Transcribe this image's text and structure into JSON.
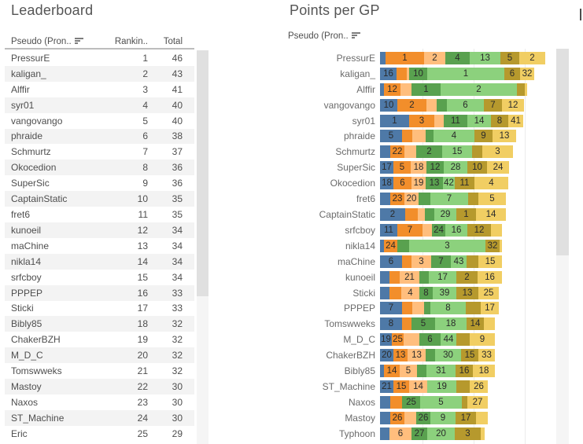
{
  "chart_data": [
    {
      "type": "table",
      "title": "Leaderboard",
      "columns": [
        "Pseudo (Pron..",
        "Rankin..",
        "Total"
      ],
      "sort_icon": "sort-descending",
      "rows": [
        [
          "PressurE",
          1,
          46
        ],
        [
          "kaligan_",
          2,
          43
        ],
        [
          "Alffir",
          3,
          41
        ],
        [
          "syr01",
          4,
          40
        ],
        [
          "vangovango",
          5,
          40
        ],
        [
          "phraide",
          6,
          38
        ],
        [
          "Schmurtz",
          7,
          37
        ],
        [
          "Okocedion",
          8,
          36
        ],
        [
          "SuperSic",
          9,
          36
        ],
        [
          "CaptainStatic",
          10,
          35
        ],
        [
          "fret6",
          11,
          35
        ],
        [
          "kunoeil",
          12,
          34
        ],
        [
          "maChine",
          13,
          34
        ],
        [
          "nikla14",
          14,
          34
        ],
        [
          "srfcboy",
          15,
          34
        ],
        [
          "PPPEP",
          16,
          33
        ],
        [
          "Sticki",
          17,
          33
        ],
        [
          "Bibly85",
          18,
          32
        ],
        [
          "ChakerBZH",
          19,
          32
        ],
        [
          "M_D_C",
          20,
          32
        ],
        [
          "Tomswweks",
          21,
          32
        ],
        [
          "Mastoy",
          22,
          30
        ],
        [
          "Naxos",
          23,
          30
        ],
        [
          "ST_Machine",
          24,
          30
        ],
        [
          "Eric",
          25,
          29
        ]
      ]
    },
    {
      "type": "bar",
      "subtype": "stacked-horizontal",
      "title": "Points per GP",
      "row_label_field": "Pseudo (Pron..",
      "sort_icon": "sort-descending",
      "axis": "hidden",
      "grid": "vertical-light",
      "palette": [
        "#4E79A7",
        "#F28E2B",
        "#FFBE7D",
        "#59A14F",
        "#8CD17D",
        "#B6992D",
        "#F1CE63"
      ],
      "segment_format": [
        "color_index",
        "width_px",
        "label"
      ],
      "rows": [
        {
          "name": "PressurE",
          "segments": [
            [
              0,
              7,
              ""
            ],
            [
              1,
              49,
              "1"
            ],
            [
              2,
              27,
              "2"
            ],
            [
              3,
              31,
              "4"
            ],
            [
              4,
              39,
              "13"
            ],
            [
              5,
              24,
              "5"
            ],
            [
              6,
              33,
              "2"
            ]
          ]
        },
        {
          "name": "kaligan_",
          "segments": [
            [
              0,
              21,
              "16"
            ],
            [
              1,
              13,
              ""
            ],
            [
              2,
              3,
              ""
            ],
            [
              3,
              23,
              "10"
            ],
            [
              4,
              98,
              "1"
            ],
            [
              5,
              20,
              "6"
            ],
            [
              6,
              18,
              "32"
            ]
          ]
        },
        {
          "name": "Alffir",
          "segments": [
            [
              0,
              5,
              ""
            ],
            [
              1,
              21,
              "12"
            ],
            [
              2,
              14,
              ""
            ],
            [
              3,
              37,
              "1"
            ],
            [
              4,
              97,
              "2"
            ],
            [
              5,
              10,
              ""
            ],
            [
              6,
              3,
              ""
            ]
          ]
        },
        {
          "name": "vangovango",
          "segments": [
            [
              0,
              22,
              "10"
            ],
            [
              1,
              37,
              "2"
            ],
            [
              2,
              13,
              ""
            ],
            [
              3,
              13,
              ""
            ],
            [
              4,
              47,
              "6"
            ],
            [
              5,
              23,
              "7"
            ],
            [
              6,
              28,
              "12"
            ]
          ]
        },
        {
          "name": "syr01",
          "segments": [
            [
              0,
              37,
              "1"
            ],
            [
              1,
              32,
              "3"
            ],
            [
              2,
              12,
              ""
            ],
            [
              3,
              30,
              "11"
            ],
            [
              4,
              30,
              "14"
            ],
            [
              5,
              22,
              "8"
            ],
            [
              6,
              19,
              "41"
            ]
          ]
        },
        {
          "name": "phraide",
          "segments": [
            [
              0,
              28,
              "5"
            ],
            [
              1,
              13,
              ""
            ],
            [
              2,
              17,
              ""
            ],
            [
              3,
              10,
              ""
            ],
            [
              4,
              52,
              "4"
            ],
            [
              5,
              23,
              "9"
            ],
            [
              6,
              30,
              "13"
            ]
          ]
        },
        {
          "name": "Schmurtz",
          "segments": [
            [
              0,
              13,
              ""
            ],
            [
              1,
              18,
              "22"
            ],
            [
              2,
              15,
              ""
            ],
            [
              3,
              33,
              "2"
            ],
            [
              4,
              38,
              "15"
            ],
            [
              5,
              13,
              ""
            ],
            [
              6,
              39,
              "3"
            ]
          ]
        },
        {
          "name": "SuperSic",
          "segments": [
            [
              0,
              17,
              "17"
            ],
            [
              1,
              22,
              "5"
            ],
            [
              2,
              20,
              "18"
            ],
            [
              3,
              22,
              "12"
            ],
            [
              4,
              30,
              "28"
            ],
            [
              5,
              25,
              "10"
            ],
            [
              6,
              28,
              "24"
            ]
          ]
        },
        {
          "name": "Okocedion",
          "segments": [
            [
              0,
              17,
              "18"
            ],
            [
              1,
              23,
              "6"
            ],
            [
              2,
              18,
              "19"
            ],
            [
              3,
              22,
              "13"
            ],
            [
              4,
              15,
              "42"
            ],
            [
              5,
              25,
              "11"
            ],
            [
              6,
              43,
              "4"
            ]
          ]
        },
        {
          "name": "fret6",
          "segments": [
            [
              0,
              13,
              ""
            ],
            [
              1,
              18,
              "23"
            ],
            [
              2,
              18,
              "20"
            ],
            [
              3,
              15,
              ""
            ],
            [
              4,
              48,
              "7"
            ],
            [
              5,
              13,
              ""
            ],
            [
              6,
              35,
              "5"
            ]
          ]
        },
        {
          "name": "CaptainStatic",
          "segments": [
            [
              0,
              32,
              "2"
            ],
            [
              1,
              16,
              ""
            ],
            [
              2,
              9,
              ""
            ],
            [
              3,
              12,
              ""
            ],
            [
              4,
              28,
              "29"
            ],
            [
              5,
              25,
              "1"
            ],
            [
              6,
              38,
              "14"
            ]
          ]
        },
        {
          "name": "srfcboy",
          "segments": [
            [
              0,
              22,
              "11"
            ],
            [
              1,
              32,
              "7"
            ],
            [
              2,
              12,
              ""
            ],
            [
              3,
              17,
              "24"
            ],
            [
              4,
              28,
              "16"
            ],
            [
              5,
              30,
              "12"
            ],
            [
              6,
              14,
              ""
            ]
          ]
        },
        {
          "name": "nikla14",
          "segments": [
            [
              0,
              5,
              ""
            ],
            [
              1,
              17,
              "24"
            ],
            [
              3,
              15,
              ""
            ],
            [
              4,
              97,
              "3"
            ],
            [
              5,
              18,
              "32"
            ],
            [
              6,
              3,
              ""
            ]
          ]
        },
        {
          "name": "maChine",
          "segments": [
            [
              0,
              28,
              "6"
            ],
            [
              1,
              12,
              ""
            ],
            [
              2,
              25,
              "3"
            ],
            [
              3,
              25,
              "7"
            ],
            [
              4,
              20,
              "43"
            ],
            [
              5,
              15,
              ""
            ],
            [
              6,
              30,
              "15"
            ]
          ]
        },
        {
          "name": "kunoeil",
          "segments": [
            [
              0,
              12,
              ""
            ],
            [
              1,
              13,
              ""
            ],
            [
              2,
              25,
              "21"
            ],
            [
              3,
              12,
              ""
            ],
            [
              4,
              35,
              "17"
            ],
            [
              5,
              27,
              "2"
            ],
            [
              6,
              31,
              "16"
            ]
          ]
        },
        {
          "name": "Sticki",
          "segments": [
            [
              0,
              12,
              ""
            ],
            [
              1,
              15,
              ""
            ],
            [
              2,
              23,
              "4"
            ],
            [
              3,
              17,
              "8"
            ],
            [
              4,
              30,
              "39"
            ],
            [
              5,
              28,
              "13"
            ],
            [
              6,
              26,
              "25"
            ]
          ]
        },
        {
          "name": "PPPEP",
          "segments": [
            [
              0,
              28,
              "7"
            ],
            [
              1,
              13,
              ""
            ],
            [
              2,
              15,
              ""
            ],
            [
              3,
              8,
              ""
            ],
            [
              4,
              45,
              "8"
            ],
            [
              5,
              19,
              ""
            ],
            [
              6,
              23,
              "17"
            ]
          ]
        },
        {
          "name": "Tomswweks",
          "segments": [
            [
              0,
              28,
              "8"
            ],
            [
              1,
              12,
              ""
            ],
            [
              3,
              30,
              "5"
            ],
            [
              4,
              40,
              "18"
            ],
            [
              5,
              22,
              "14"
            ],
            [
              6,
              14,
              ""
            ]
          ]
        },
        {
          "name": "M_D_C",
          "segments": [
            [
              0,
              15,
              "19"
            ],
            [
              1,
              15,
              "25"
            ],
            [
              2,
              20,
              ""
            ],
            [
              3,
              27,
              "6"
            ],
            [
              4,
              20,
              "44"
            ],
            [
              5,
              17,
              ""
            ],
            [
              6,
              32,
              "9"
            ]
          ]
        },
        {
          "name": "ChakerBZH",
          "segments": [
            [
              0,
              17,
              "20"
            ],
            [
              1,
              18,
              "13"
            ],
            [
              2,
              23,
              "13"
            ],
            [
              3,
              12,
              ""
            ],
            [
              4,
              33,
              "30"
            ],
            [
              5,
              22,
              "15"
            ],
            [
              6,
              21,
              "33"
            ]
          ]
        },
        {
          "name": "Bibly85",
          "segments": [
            [
              0,
              5,
              ""
            ],
            [
              1,
              20,
              "14"
            ],
            [
              2,
              22,
              "5"
            ],
            [
              3,
              12,
              ""
            ],
            [
              4,
              37,
              "31"
            ],
            [
              5,
              22,
              "16"
            ],
            [
              6,
              28,
              "18"
            ]
          ]
        },
        {
          "name": "ST_Machine",
          "segments": [
            [
              0,
              17,
              "21"
            ],
            [
              1,
              20,
              "15"
            ],
            [
              2,
              23,
              "14"
            ],
            [
              4,
              37,
              "19"
            ],
            [
              5,
              17,
              ""
            ],
            [
              6,
              23,
              "26"
            ]
          ]
        },
        {
          "name": "Naxos",
          "segments": [
            [
              0,
              13,
              ""
            ],
            [
              1,
              15,
              ""
            ],
            [
              3,
              23,
              "25"
            ],
            [
              4,
              53,
              "5"
            ],
            [
              5,
              7,
              ""
            ],
            [
              6,
              26,
              "27"
            ]
          ]
        },
        {
          "name": "Mastoy",
          "segments": [
            [
              0,
              13,
              ""
            ],
            [
              1,
              18,
              "26"
            ],
            [
              2,
              15,
              ""
            ],
            [
              3,
              18,
              "26"
            ],
            [
              4,
              32,
              "9"
            ],
            [
              5,
              26,
              "17"
            ],
            [
              6,
              15,
              ""
            ]
          ]
        },
        {
          "name": "Typhoon",
          "segments": [
            [
              0,
              12,
              ""
            ],
            [
              2,
              28,
              "6"
            ],
            [
              3,
              20,
              "27"
            ],
            [
              4,
              35,
              "20"
            ],
            [
              5,
              33,
              "3"
            ],
            [
              6,
              5,
              ""
            ]
          ]
        }
      ]
    }
  ]
}
